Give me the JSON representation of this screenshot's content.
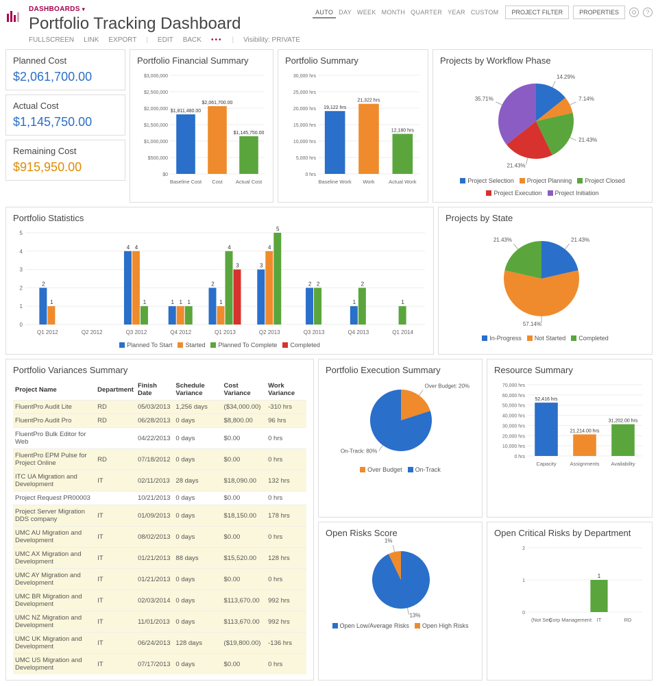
{
  "breadcrumb": "DASHBOARDS",
  "title": "Portfolio Tracking Dashboard",
  "toolbar": {
    "fullscreen": "FULLSCREEN",
    "link": "LINK",
    "export": "EXPORT",
    "edit": "EDIT",
    "back": "BACK",
    "visibility": "Visibility: PRIVATE"
  },
  "time_tabs": [
    "AUTO",
    "DAY",
    "WEEK",
    "MONTH",
    "QUARTER",
    "YEAR",
    "CUSTOM"
  ],
  "time_active": "AUTO",
  "project_filter": "PROJECT FILTER",
  "properties": "PROPERTIES",
  "kpi": {
    "planned": {
      "label": "Planned Cost",
      "value": "$2,061,700.00",
      "color": "#2a6fc9"
    },
    "actual": {
      "label": "Actual Cost",
      "value": "$1,145,750.00",
      "color": "#2a6fc9"
    },
    "remain": {
      "label": "Remaining Cost",
      "value": "$915,950.00",
      "color": "#e08b00"
    }
  },
  "fin_summary": {
    "title": "Portfolio Financial Summary",
    "type": "bar",
    "categories": [
      "Baseline Cost",
      "Cost",
      "Actual Cost"
    ],
    "values": [
      1811480,
      2061700,
      1145750
    ],
    "labels": [
      "$1,811,480.00",
      "$2,061,700.00",
      "$1,145,750.00"
    ],
    "colors": [
      "#2a6fc9",
      "#ef8b2c",
      "#5aa63c"
    ],
    "ylim": [
      0,
      3000000
    ],
    "ytick": 500000,
    "ylabels": [
      "$0",
      "$500,000",
      "$1,000,000",
      "$1,500,000",
      "$2,000,000",
      "$2,500,000",
      "$3,000,000"
    ]
  },
  "port_summary": {
    "title": "Portfolio Summary",
    "type": "bar",
    "categories": [
      "Baseline Work",
      "Work",
      "Actual Work"
    ],
    "values": [
      19122,
      21322,
      12180
    ],
    "labels": [
      "19,122 hrs",
      "21,322 hrs",
      "12,180 hrs"
    ],
    "colors": [
      "#2a6fc9",
      "#ef8b2c",
      "#5aa63c"
    ],
    "ylim": [
      0,
      30000
    ],
    "ytick": 5000,
    "ylabels": [
      "0 hrs",
      "5,000 hrs",
      "10,000 hrs",
      "15,000 hrs",
      "20,000 hrs",
      "25,000 hrs",
      "30,000 hrs"
    ]
  },
  "workflow": {
    "title": "Projects by Workflow Phase",
    "type": "pie",
    "slices": [
      {
        "label": "Project Selection",
        "value": 14.29,
        "color": "#2a6fc9"
      },
      {
        "label": "Project Planning",
        "value": 7.14,
        "color": "#ef8b2c"
      },
      {
        "label": "Project Closed",
        "value": 21.43,
        "color": "#5aa63c"
      },
      {
        "label": "Project Execution",
        "value": 21.43,
        "color": "#d7322d"
      },
      {
        "label": "Project Initiation",
        "value": 35.71,
        "color": "#8a5cc4"
      }
    ]
  },
  "stats": {
    "title": "Portfolio Statistics",
    "type": "grouped-bar",
    "categories": [
      "Q1 2012",
      "Q2 2012",
      "Q3 2012",
      "Q4 2012",
      "Q1 2013",
      "Q2 2013",
      "Q3 2013",
      "Q4 2013",
      "Q1 2014"
    ],
    "series": [
      {
        "name": "Planned To Start",
        "color": "#2a6fc9",
        "values": [
          2,
          0,
          4,
          1,
          2,
          3,
          2,
          1,
          0
        ]
      },
      {
        "name": "Started",
        "color": "#ef8b2c",
        "values": [
          1,
          0,
          4,
          1,
          1,
          4,
          0,
          0,
          0
        ]
      },
      {
        "name": "Planned To Complete",
        "color": "#5aa63c",
        "values": [
          0,
          0,
          1,
          1,
          4,
          5,
          2,
          2,
          1
        ]
      },
      {
        "name": "Completed",
        "color": "#d7322d",
        "values": [
          0,
          0,
          0,
          0,
          3,
          0,
          0,
          0,
          0
        ]
      }
    ],
    "ylim": [
      0,
      5
    ],
    "ytick": 1
  },
  "by_state": {
    "title": "Projects by State",
    "type": "pie",
    "slices": [
      {
        "label": "In-Progress",
        "value": 21.43,
        "color": "#2a6fc9"
      },
      {
        "label": "Not Started",
        "value": 57.14,
        "color": "#ef8b2c"
      },
      {
        "label": "Completed",
        "value": 21.43,
        "color": "#5aa63c"
      }
    ]
  },
  "variances": {
    "title": "Portfolio Variances Summary",
    "columns": [
      "Project Name",
      "Department",
      "Finish Date",
      "Schedule Variance",
      "Cost Variance",
      "Work Variance"
    ],
    "rows": [
      [
        "FluentPro Audit Lite",
        "RD",
        "05/03/2013",
        "1,256 days",
        "($34,000.00)",
        "-310 hrs",
        true
      ],
      [
        "FluentPro Audit Pro",
        "RD",
        "06/28/2013",
        "0 days",
        "$8,800.00",
        "96 hrs",
        true
      ],
      [
        "FluentPro Bulk Editor for Web",
        "",
        "04/22/2013",
        "0 days",
        "$0.00",
        "0 hrs",
        false
      ],
      [
        "FluentPro EPM Pulse for Project Online",
        "RD",
        "07/18/2012",
        "0 days",
        "$0.00",
        "0 hrs",
        true
      ],
      [
        "ITC UA Migration and Development",
        "IT",
        "02/11/2013",
        "28 days",
        "$18,090.00",
        "132 hrs",
        true
      ],
      [
        "Project Request PR00003",
        "",
        "10/21/2013",
        "0 days",
        "$0.00",
        "0 hrs",
        false
      ],
      [
        "Project Server Migration DDS company",
        "IT",
        "01/09/2013",
        "0 days",
        "$18,150.00",
        "178 hrs",
        true
      ],
      [
        "UMC AU Migration and Development",
        "IT",
        "08/02/2013",
        "0 days",
        "$0.00",
        "0 hrs",
        true
      ],
      [
        "UMC AX Migration and Development",
        "IT",
        "01/21/2013",
        "88 days",
        "$15,520.00",
        "128 hrs",
        true
      ],
      [
        "UMC AY Migration and Development",
        "IT",
        "01/21/2013",
        "0 days",
        "$0.00",
        "0 hrs",
        true
      ],
      [
        "UMC BR Migration and Development",
        "IT",
        "02/03/2014",
        "0 days",
        "$113,670.00",
        "992 hrs",
        true
      ],
      [
        "UMC NZ Migration and Development",
        "IT",
        "11/01/2013",
        "0 days",
        "$113,670.00",
        "992 hrs",
        true
      ],
      [
        "UMC UK Migration and Development",
        "IT",
        "06/24/2013",
        "128 days",
        "($19,800.00)",
        "-136 hrs",
        true
      ],
      [
        "UMC US Migration and Development",
        "IT",
        "07/17/2013",
        "0 days",
        "$0.00",
        "0 hrs",
        true
      ]
    ]
  },
  "exec_summary": {
    "title": "Portfolio Execution Summary",
    "type": "pie",
    "slices": [
      {
        "label": "Over Budget",
        "value": 20,
        "color": "#ef8b2c",
        "text": "Over Budget: 20%"
      },
      {
        "label": "On-Track",
        "value": 80,
        "color": "#2a6fc9",
        "text": "On-Track: 80%"
      }
    ]
  },
  "resource": {
    "title": "Resource Summary",
    "type": "bar",
    "categories": [
      "Capacity",
      "Assignments",
      "Availability"
    ],
    "values": [
      52416,
      21214,
      31202
    ],
    "labels": [
      "52,416 hrs",
      "21,214.00 hrs",
      "31,202.00 hrs"
    ],
    "colors": [
      "#2a6fc9",
      "#ef8b2c",
      "#5aa63c"
    ],
    "ylim": [
      0,
      70000
    ],
    "ytick": 10000,
    "ylabels": [
      "0 hrs",
      "10,000 hrs",
      "20,000 hrs",
      "30,000 hrs",
      "40,000 hrs",
      "50,000 hrs",
      "60,000 hrs",
      "70,000 hrs"
    ]
  },
  "risks": {
    "title": "Open Risks Score",
    "type": "pie",
    "slices": [
      {
        "label": "Open Low/Average Risks",
        "value": 13,
        "color": "#2a6fc9"
      },
      {
        "label": "Open High Risks",
        "value": 1,
        "color": "#ef8b2c"
      }
    ],
    "value_labels": [
      "13",
      "1"
    ]
  },
  "crit_risks": {
    "title": "Open Critical Risks by Department",
    "type": "bar",
    "categories": [
      "(Not Set)",
      "Corp Management",
      "IT",
      "RD"
    ],
    "values": [
      0,
      0,
      1,
      0
    ],
    "color": "#5aa63c",
    "ylim": [
      0,
      2
    ],
    "ytick": 1
  }
}
